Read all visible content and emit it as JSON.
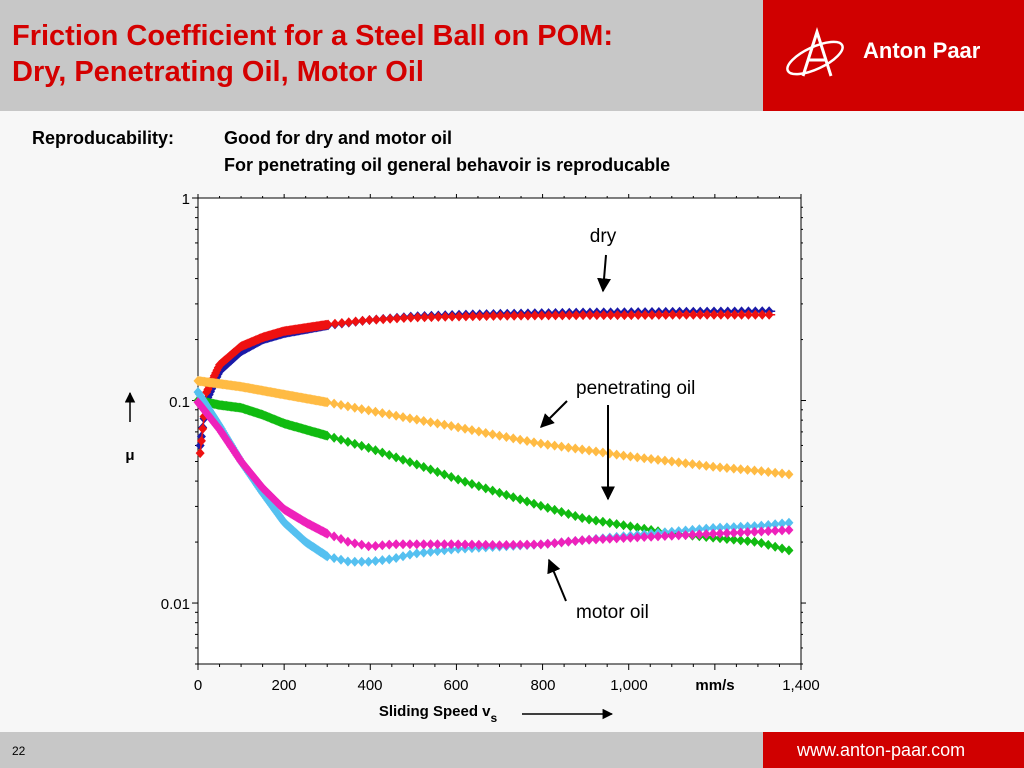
{
  "title": {
    "line1": "Friction Coefficient for a Steel Ball on POM:",
    "line2": "Dry, Penetrating Oil, Motor Oil"
  },
  "brand": {
    "name": "Anton Paar",
    "url": "www.anton-paar.com"
  },
  "subtitle": {
    "label": "Reproducability:",
    "line1": "Good for dry and motor oil",
    "line2": "For penetrating oil general behavoir is reproducable"
  },
  "page_number": "22",
  "colors": {
    "accent": "#d00000",
    "title": "#d40000",
    "header_gray": "#c7c7c7"
  },
  "chart_data": {
    "type": "line",
    "x_axis": {
      "label": "Sliding Speed v",
      "label_subscript": "s",
      "unit": "mm/s",
      "range": [
        0,
        1400
      ],
      "ticks": [
        "0",
        "200",
        "400",
        "600",
        "800",
        "1,000",
        "1,400"
      ]
    },
    "y_axis": {
      "label": "μ",
      "scale": "log",
      "range": [
        0.005,
        1
      ],
      "ticks": [
        "0.01",
        "0.1",
        "1"
      ]
    },
    "annotations": [
      "dry",
      "penetrating oil",
      "motor oil"
    ],
    "series": [
      {
        "color": "#1a1aa8",
        "points": [
          [
            5,
            0.06
          ],
          [
            20,
            0.1
          ],
          [
            50,
            0.14
          ],
          [
            100,
            0.175
          ],
          [
            150,
            0.2
          ],
          [
            200,
            0.215
          ],
          [
            300,
            0.235
          ],
          [
            400,
            0.25
          ],
          [
            500,
            0.26
          ],
          [
            600,
            0.265
          ],
          [
            700,
            0.268
          ],
          [
            800,
            0.27
          ],
          [
            900,
            0.272
          ],
          [
            1000,
            0.273
          ],
          [
            1100,
            0.274
          ],
          [
            1200,
            0.275
          ],
          [
            1340,
            0.276
          ]
        ]
      },
      {
        "color": "#ee1111",
        "points": [
          [
            5,
            0.055
          ],
          [
            20,
            0.11
          ],
          [
            50,
            0.15
          ],
          [
            100,
            0.185
          ],
          [
            150,
            0.205
          ],
          [
            200,
            0.22
          ],
          [
            300,
            0.237
          ],
          [
            400,
            0.25
          ],
          [
            500,
            0.257
          ],
          [
            600,
            0.26
          ],
          [
            700,
            0.262
          ],
          [
            800,
            0.263
          ],
          [
            900,
            0.264
          ],
          [
            1000,
            0.264
          ],
          [
            1100,
            0.265
          ],
          [
            1200,
            0.265
          ],
          [
            1340,
            0.265
          ]
        ]
      },
      {
        "color": "#ffbb44",
        "points": [
          [
            0,
            0.125
          ],
          [
            100,
            0.117
          ],
          [
            200,
            0.107
          ],
          [
            300,
            0.098
          ],
          [
            400,
            0.089
          ],
          [
            500,
            0.081
          ],
          [
            600,
            0.074
          ],
          [
            700,
            0.067
          ],
          [
            800,
            0.061
          ],
          [
            900,
            0.057
          ],
          [
            1000,
            0.053
          ],
          [
            1100,
            0.05
          ],
          [
            1200,
            0.047
          ],
          [
            1300,
            0.045
          ],
          [
            1380,
            0.043
          ]
        ]
      },
      {
        "color": "#11bb11",
        "points": [
          [
            0,
            0.1
          ],
          [
            50,
            0.095
          ],
          [
            100,
            0.092
          ],
          [
            150,
            0.085
          ],
          [
            200,
            0.077
          ],
          [
            300,
            0.067
          ],
          [
            400,
            0.058
          ],
          [
            500,
            0.049
          ],
          [
            600,
            0.041
          ],
          [
            700,
            0.035
          ],
          [
            800,
            0.03
          ],
          [
            900,
            0.026
          ],
          [
            1000,
            0.024
          ],
          [
            1100,
            0.022
          ],
          [
            1200,
            0.021
          ],
          [
            1300,
            0.02
          ],
          [
            1380,
            0.018
          ]
        ]
      },
      {
        "color": "#55c0f0",
        "points": [
          [
            0,
            0.11
          ],
          [
            50,
            0.075
          ],
          [
            100,
            0.05
          ],
          [
            150,
            0.035
          ],
          [
            200,
            0.025
          ],
          [
            250,
            0.02
          ],
          [
            300,
            0.017
          ],
          [
            350,
            0.016
          ],
          [
            400,
            0.016
          ],
          [
            450,
            0.0165
          ],
          [
            500,
            0.0175
          ],
          [
            600,
            0.0185
          ],
          [
            700,
            0.019
          ],
          [
            800,
            0.0195
          ],
          [
            900,
            0.0205
          ],
          [
            1000,
            0.0215
          ],
          [
            1100,
            0.0225
          ],
          [
            1200,
            0.0235
          ],
          [
            1300,
            0.024
          ],
          [
            1380,
            0.025
          ]
        ]
      },
      {
        "color": "#ee22bb",
        "points": [
          [
            0,
            0.098
          ],
          [
            50,
            0.072
          ],
          [
            100,
            0.05
          ],
          [
            150,
            0.037
          ],
          [
            200,
            0.029
          ],
          [
            250,
            0.025
          ],
          [
            300,
            0.022
          ],
          [
            350,
            0.02
          ],
          [
            400,
            0.019
          ],
          [
            450,
            0.0195
          ],
          [
            500,
            0.0195
          ],
          [
            600,
            0.0195
          ],
          [
            700,
            0.0193
          ],
          [
            800,
            0.0195
          ],
          [
            900,
            0.0205
          ],
          [
            1000,
            0.021
          ],
          [
            1100,
            0.0215
          ],
          [
            1200,
            0.022
          ],
          [
            1300,
            0.0225
          ],
          [
            1380,
            0.023
          ]
        ]
      }
    ]
  }
}
